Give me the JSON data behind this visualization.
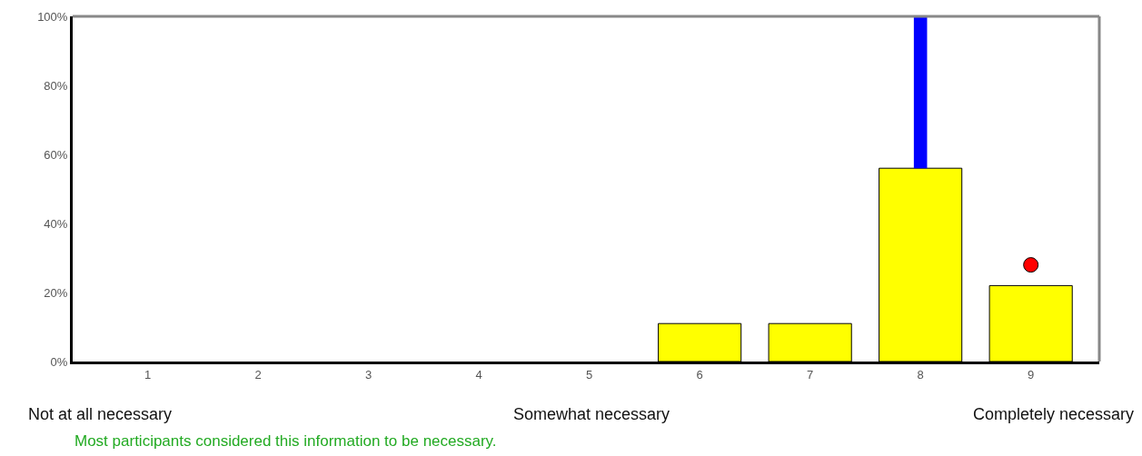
{
  "chart_data": {
    "type": "bar",
    "categories": [
      "1",
      "2",
      "3",
      "4",
      "5",
      "6",
      "7",
      "8",
      "9"
    ],
    "series": [
      {
        "color": "#ffff00",
        "values": [
          0,
          0,
          0,
          0,
          0,
          11,
          11,
          56,
          22
        ]
      },
      {
        "type": "bar",
        "color": "#0000ff",
        "values": [
          null,
          null,
          null,
          null,
          null,
          null,
          null,
          44,
          null
        ],
        "base": [
          null,
          null,
          null,
          null,
          null,
          null,
          null,
          56,
          null
        ]
      },
      {
        "type": "scatter",
        "color": "#ff0000",
        "x": [
          "9"
        ],
        "values": [
          28
        ],
        "marker": "circle"
      }
    ],
    "ylim": [
      0,
      100
    ],
    "yticks": [
      {
        "value": 0,
        "label": "0%"
      },
      {
        "value": 20,
        "label": "20%"
      },
      {
        "value": 40,
        "label": "40%"
      },
      {
        "value": 60,
        "label": "60%"
      },
      {
        "value": 80,
        "label": "80%"
      },
      {
        "value": 100,
        "label": "100%"
      }
    ],
    "annotations": [
      "Not at all necessary",
      "Somewhat necessary",
      "Completely necessary",
      "Most participants considered this information to be necessary."
    ]
  }
}
